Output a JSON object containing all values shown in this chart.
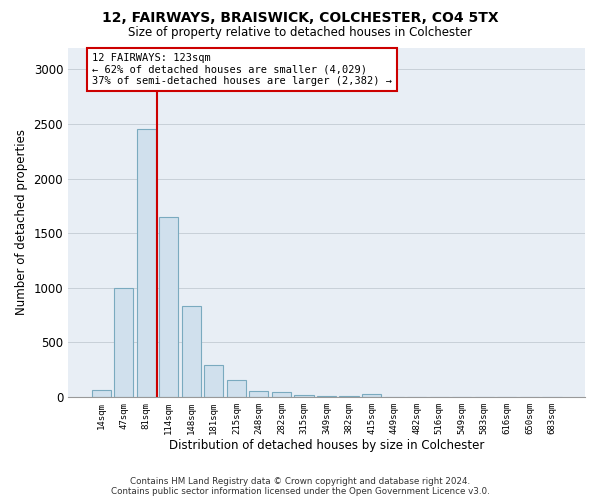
{
  "title": "12, FAIRWAYS, BRAISWICK, COLCHESTER, CO4 5TX",
  "subtitle": "Size of property relative to detached houses in Colchester",
  "xlabel": "Distribution of detached houses by size in Colchester",
  "ylabel": "Number of detached properties",
  "bar_labels": [
    "14sqm",
    "47sqm",
    "81sqm",
    "114sqm",
    "148sqm",
    "181sqm",
    "215sqm",
    "248sqm",
    "282sqm",
    "315sqm",
    "349sqm",
    "382sqm",
    "415sqm",
    "449sqm",
    "482sqm",
    "516sqm",
    "549sqm",
    "583sqm",
    "616sqm",
    "650sqm",
    "683sqm"
  ],
  "bar_values": [
    60,
    1000,
    2450,
    1650,
    830,
    295,
    150,
    55,
    40,
    20,
    5,
    5,
    30,
    0,
    0,
    0,
    0,
    0,
    0,
    0,
    0
  ],
  "bar_color": "#d0e0ed",
  "bar_edgecolor": "#7aaabf",
  "ylim": [
    0,
    3200
  ],
  "yticks": [
    0,
    500,
    1000,
    1500,
    2000,
    2500,
    3000
  ],
  "vline_x": 2.5,
  "vline_color": "#cc0000",
  "annotation_line1": "12 FAIRWAYS: 123sqm",
  "annotation_line2": "← 62% of detached houses are smaller (4,029)",
  "annotation_line3": "37% of semi-detached houses are larger (2,382) →",
  "footer1": "Contains HM Land Registry data © Crown copyright and database right 2024.",
  "footer2": "Contains public sector information licensed under the Open Government Licence v3.0.",
  "plot_bg_color": "#e8eef5"
}
